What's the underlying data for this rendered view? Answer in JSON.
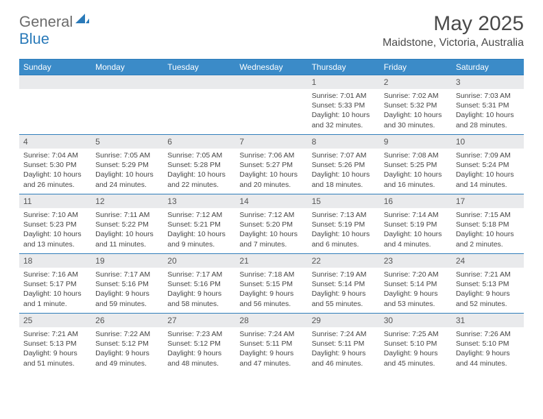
{
  "brand": {
    "part1": "General",
    "part2": "Blue"
  },
  "title": "May 2025",
  "location": "Maidstone, Victoria, Australia",
  "colors": {
    "accent": "#3b8bc8",
    "rule": "#2a7ab9",
    "band": "#e9eaec",
    "text": "#444444",
    "title": "#4a4a4a"
  },
  "day_names": [
    "Sunday",
    "Monday",
    "Tuesday",
    "Wednesday",
    "Thursday",
    "Friday",
    "Saturday"
  ],
  "weeks": [
    [
      {
        "n": "",
        "sr": "",
        "ss": "",
        "dl": ""
      },
      {
        "n": "",
        "sr": "",
        "ss": "",
        "dl": ""
      },
      {
        "n": "",
        "sr": "",
        "ss": "",
        "dl": ""
      },
      {
        "n": "",
        "sr": "",
        "ss": "",
        "dl": ""
      },
      {
        "n": "1",
        "sr": "Sunrise: 7:01 AM",
        "ss": "Sunset: 5:33 PM",
        "dl": "Daylight: 10 hours and 32 minutes."
      },
      {
        "n": "2",
        "sr": "Sunrise: 7:02 AM",
        "ss": "Sunset: 5:32 PM",
        "dl": "Daylight: 10 hours and 30 minutes."
      },
      {
        "n": "3",
        "sr": "Sunrise: 7:03 AM",
        "ss": "Sunset: 5:31 PM",
        "dl": "Daylight: 10 hours and 28 minutes."
      }
    ],
    [
      {
        "n": "4",
        "sr": "Sunrise: 7:04 AM",
        "ss": "Sunset: 5:30 PM",
        "dl": "Daylight: 10 hours and 26 minutes."
      },
      {
        "n": "5",
        "sr": "Sunrise: 7:05 AM",
        "ss": "Sunset: 5:29 PM",
        "dl": "Daylight: 10 hours and 24 minutes."
      },
      {
        "n": "6",
        "sr": "Sunrise: 7:05 AM",
        "ss": "Sunset: 5:28 PM",
        "dl": "Daylight: 10 hours and 22 minutes."
      },
      {
        "n": "7",
        "sr": "Sunrise: 7:06 AM",
        "ss": "Sunset: 5:27 PM",
        "dl": "Daylight: 10 hours and 20 minutes."
      },
      {
        "n": "8",
        "sr": "Sunrise: 7:07 AM",
        "ss": "Sunset: 5:26 PM",
        "dl": "Daylight: 10 hours and 18 minutes."
      },
      {
        "n": "9",
        "sr": "Sunrise: 7:08 AM",
        "ss": "Sunset: 5:25 PM",
        "dl": "Daylight: 10 hours and 16 minutes."
      },
      {
        "n": "10",
        "sr": "Sunrise: 7:09 AM",
        "ss": "Sunset: 5:24 PM",
        "dl": "Daylight: 10 hours and 14 minutes."
      }
    ],
    [
      {
        "n": "11",
        "sr": "Sunrise: 7:10 AM",
        "ss": "Sunset: 5:23 PM",
        "dl": "Daylight: 10 hours and 13 minutes."
      },
      {
        "n": "12",
        "sr": "Sunrise: 7:11 AM",
        "ss": "Sunset: 5:22 PM",
        "dl": "Daylight: 10 hours and 11 minutes."
      },
      {
        "n": "13",
        "sr": "Sunrise: 7:12 AM",
        "ss": "Sunset: 5:21 PM",
        "dl": "Daylight: 10 hours and 9 minutes."
      },
      {
        "n": "14",
        "sr": "Sunrise: 7:12 AM",
        "ss": "Sunset: 5:20 PM",
        "dl": "Daylight: 10 hours and 7 minutes."
      },
      {
        "n": "15",
        "sr": "Sunrise: 7:13 AM",
        "ss": "Sunset: 5:19 PM",
        "dl": "Daylight: 10 hours and 6 minutes."
      },
      {
        "n": "16",
        "sr": "Sunrise: 7:14 AM",
        "ss": "Sunset: 5:19 PM",
        "dl": "Daylight: 10 hours and 4 minutes."
      },
      {
        "n": "17",
        "sr": "Sunrise: 7:15 AM",
        "ss": "Sunset: 5:18 PM",
        "dl": "Daylight: 10 hours and 2 minutes."
      }
    ],
    [
      {
        "n": "18",
        "sr": "Sunrise: 7:16 AM",
        "ss": "Sunset: 5:17 PM",
        "dl": "Daylight: 10 hours and 1 minute."
      },
      {
        "n": "19",
        "sr": "Sunrise: 7:17 AM",
        "ss": "Sunset: 5:16 PM",
        "dl": "Daylight: 9 hours and 59 minutes."
      },
      {
        "n": "20",
        "sr": "Sunrise: 7:17 AM",
        "ss": "Sunset: 5:16 PM",
        "dl": "Daylight: 9 hours and 58 minutes."
      },
      {
        "n": "21",
        "sr": "Sunrise: 7:18 AM",
        "ss": "Sunset: 5:15 PM",
        "dl": "Daylight: 9 hours and 56 minutes."
      },
      {
        "n": "22",
        "sr": "Sunrise: 7:19 AM",
        "ss": "Sunset: 5:14 PM",
        "dl": "Daylight: 9 hours and 55 minutes."
      },
      {
        "n": "23",
        "sr": "Sunrise: 7:20 AM",
        "ss": "Sunset: 5:14 PM",
        "dl": "Daylight: 9 hours and 53 minutes."
      },
      {
        "n": "24",
        "sr": "Sunrise: 7:21 AM",
        "ss": "Sunset: 5:13 PM",
        "dl": "Daylight: 9 hours and 52 minutes."
      }
    ],
    [
      {
        "n": "25",
        "sr": "Sunrise: 7:21 AM",
        "ss": "Sunset: 5:13 PM",
        "dl": "Daylight: 9 hours and 51 minutes."
      },
      {
        "n": "26",
        "sr": "Sunrise: 7:22 AM",
        "ss": "Sunset: 5:12 PM",
        "dl": "Daylight: 9 hours and 49 minutes."
      },
      {
        "n": "27",
        "sr": "Sunrise: 7:23 AM",
        "ss": "Sunset: 5:12 PM",
        "dl": "Daylight: 9 hours and 48 minutes."
      },
      {
        "n": "28",
        "sr": "Sunrise: 7:24 AM",
        "ss": "Sunset: 5:11 PM",
        "dl": "Daylight: 9 hours and 47 minutes."
      },
      {
        "n": "29",
        "sr": "Sunrise: 7:24 AM",
        "ss": "Sunset: 5:11 PM",
        "dl": "Daylight: 9 hours and 46 minutes."
      },
      {
        "n": "30",
        "sr": "Sunrise: 7:25 AM",
        "ss": "Sunset: 5:10 PM",
        "dl": "Daylight: 9 hours and 45 minutes."
      },
      {
        "n": "31",
        "sr": "Sunrise: 7:26 AM",
        "ss": "Sunset: 5:10 PM",
        "dl": "Daylight: 9 hours and 44 minutes."
      }
    ]
  ]
}
